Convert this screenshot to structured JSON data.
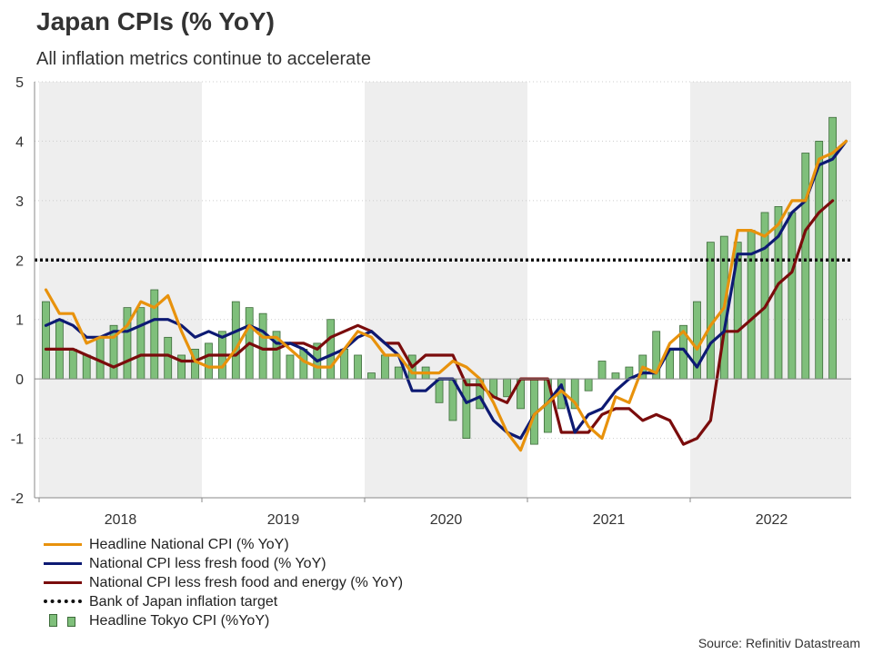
{
  "title": "Japan CPIs (% YoY)",
  "subtitle": "All inflation metrics continue to accelerate",
  "source": "Source: Refinitiv Datastream",
  "colors": {
    "headline": "#e8920c",
    "core": "#0d1a73",
    "core_core": "#7a0c0c",
    "target": "#111111",
    "tokyo_fill": "#7fbf7b",
    "tokyo_edge": "#3d6b3a",
    "shade": "#eeeeee"
  },
  "legend": [
    {
      "key": "headline",
      "label": "Headline National CPI (% YoY)"
    },
    {
      "key": "core",
      "label": "National CPI less fresh food (% YoY)"
    },
    {
      "key": "core_core",
      "label": "National CPI less fresh food and energy (% YoY)"
    },
    {
      "key": "target",
      "label": "Bank of Japan inflation target"
    },
    {
      "key": "tokyo",
      "label": "Headline Tokyo CPI (%YoY)"
    }
  ],
  "chart_data": {
    "type": "line",
    "title": "Japan CPIs (% YoY)",
    "ylim": [
      -2,
      5
    ],
    "yticks": [
      "5",
      "4",
      "3",
      "2",
      "1",
      "0",
      "-1",
      "-2"
    ],
    "x_start": "2018-01",
    "x_end": "2022-12",
    "years": [
      "2018",
      "2019",
      "2020",
      "2021",
      "2022"
    ],
    "target": 2,
    "series": [
      {
        "name": "Headline National CPI (% YoY)",
        "key": "headline",
        "start": "2018-01",
        "values": [
          1.5,
          1.1,
          1.1,
          0.6,
          0.7,
          0.7,
          0.9,
          1.3,
          1.2,
          1.4,
          0.8,
          0.3,
          0.2,
          0.2,
          0.5,
          0.9,
          0.7,
          0.7,
          0.5,
          0.3,
          0.2,
          0.2,
          0.5,
          0.8,
          0.7,
          0.4,
          0.4,
          0.1,
          0.1,
          0.1,
          0.3,
          0.2,
          0.0,
          -0.4,
          -0.9,
          -1.2,
          -0.6,
          -0.4,
          -0.2,
          -0.4,
          -0.8,
          -1.0,
          -0.3,
          -0.4,
          0.2,
          0.1,
          0.6,
          0.8,
          0.5,
          0.9,
          1.2,
          2.5,
          2.5,
          2.4,
          2.6,
          3.0,
          3.0,
          3.7,
          3.8,
          4.0
        ]
      },
      {
        "name": "National CPI less fresh food (% YoY)",
        "key": "core",
        "start": "2018-01",
        "values": [
          0.9,
          1.0,
          0.9,
          0.7,
          0.7,
          0.8,
          0.8,
          0.9,
          1.0,
          1.0,
          0.9,
          0.7,
          0.8,
          0.7,
          0.8,
          0.9,
          0.8,
          0.6,
          0.6,
          0.5,
          0.3,
          0.4,
          0.5,
          0.7,
          0.8,
          0.6,
          0.4,
          -0.2,
          -0.2,
          0.0,
          0.0,
          -0.4,
          -0.3,
          -0.7,
          -0.9,
          -1.0,
          -0.6,
          -0.4,
          -0.1,
          -0.9,
          -0.6,
          -0.5,
          -0.2,
          0.0,
          0.1,
          0.1,
          0.5,
          0.5,
          0.2,
          0.6,
          0.8,
          2.1,
          2.1,
          2.2,
          2.4,
          2.8,
          3.0,
          3.6,
          3.7,
          4.0
        ]
      },
      {
        "name": "National CPI less fresh food and energy (% YoY)",
        "key": "core_core",
        "start": "2018-01",
        "values": [
          0.5,
          0.5,
          0.5,
          0.4,
          0.3,
          0.2,
          0.3,
          0.4,
          0.4,
          0.4,
          0.3,
          0.3,
          0.4,
          0.4,
          0.4,
          0.6,
          0.5,
          0.5,
          0.6,
          0.6,
          0.5,
          0.7,
          0.8,
          0.9,
          0.8,
          0.6,
          0.6,
          0.2,
          0.4,
          0.4,
          0.4,
          -0.1,
          -0.1,
          -0.3,
          -0.4,
          0.0,
          0.0,
          0.0,
          -0.9,
          -0.9,
          -0.9,
          -0.6,
          -0.5,
          -0.5,
          -0.7,
          -0.6,
          -0.7,
          -1.1,
          -1.0,
          -0.7,
          0.8,
          0.8,
          1.0,
          1.2,
          1.6,
          1.8,
          2.5,
          2.8,
          3.0
        ]
      },
      {
        "name": "Headline Tokyo CPI (%YoY)",
        "key": "tokyo",
        "type": "bar",
        "start": "2018-01",
        "values": [
          1.3,
          1.0,
          0.5,
          0.4,
          0.7,
          0.9,
          1.2,
          1.2,
          1.5,
          0.7,
          0.4,
          0.5,
          0.6,
          0.8,
          1.3,
          1.2,
          1.1,
          0.8,
          0.4,
          0.5,
          0.6,
          1.0,
          0.5,
          0.4,
          0.1,
          0.4,
          0.2,
          0.4,
          0.2,
          -0.4,
          -0.7,
          -1.0,
          -0.5,
          -0.3,
          -0.3,
          -0.5,
          -1.1,
          -0.9,
          -0.5,
          -0.5,
          -0.2,
          0.3,
          0.1,
          0.2,
          0.4,
          0.8,
          0.5,
          0.9,
          1.3,
          2.3,
          2.4,
          2.3,
          2.5,
          2.8,
          2.9,
          2.8,
          3.8,
          4.0,
          4.4
        ]
      }
    ]
  }
}
